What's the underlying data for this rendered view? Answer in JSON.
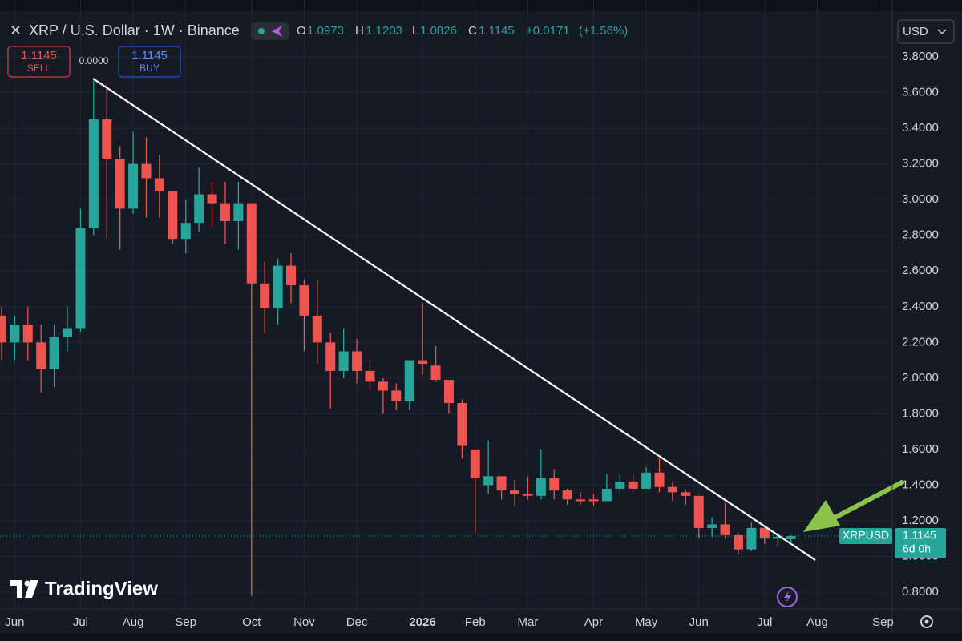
{
  "chart_data": {
    "type": "candlestick",
    "title": "XRP / U.S. Dollar · 1W · Binance",
    "categories": [
      null,
      null,
      null,
      null,
      null,
      null,
      null,
      null,
      null,
      null,
      null,
      null,
      null,
      null,
      null,
      null,
      null,
      null,
      null,
      null,
      null,
      null,
      null,
      null,
      null,
      null,
      null,
      null,
      null,
      null,
      null,
      null,
      null,
      null,
      null,
      null,
      null,
      null,
      null,
      null,
      null,
      null,
      null,
      null,
      null,
      null,
      null,
      null,
      null,
      null,
      null,
      null,
      null,
      null,
      null,
      null,
      null,
      null,
      null,
      null,
      null
    ],
    "series": [
      {
        "name": "XRPUSD",
        "up_color": "#26a69a",
        "down_color": "#ef5350",
        "open": [
          2.35,
          2.2,
          2.3,
          2.2,
          2.05,
          2.23,
          2.28,
          2.84,
          3.45,
          3.23,
          2.95,
          3.2,
          3.12,
          3.05,
          2.78,
          2.87,
          3.03,
          2.98,
          2.88,
          2.98,
          2.53,
          2.39,
          2.63,
          2.52,
          2.35,
          2.2,
          2.04,
          2.15,
          2.04,
          1.98,
          1.93,
          1.87,
          2.1,
          2.07,
          1.99,
          1.86,
          1.6,
          1.4,
          1.45,
          1.37,
          1.35,
          1.34,
          1.44,
          1.37,
          1.32,
          1.32,
          1.31,
          1.38,
          1.42,
          1.38,
          1.47,
          1.39,
          1.36,
          1.34,
          1.16,
          1.18,
          1.12,
          1.04,
          1.16,
          1.1,
          1.0973
        ],
        "high": [
          2.4,
          2.35,
          2.4,
          2.3,
          2.3,
          2.4,
          2.95,
          3.67,
          3.65,
          3.3,
          3.38,
          3.35,
          3.25,
          3.05,
          3.0,
          3.18,
          3.1,
          3.1,
          3.1,
          2.98,
          2.65,
          2.67,
          2.7,
          2.55,
          2.55,
          2.25,
          2.28,
          2.22,
          2.1,
          2.0,
          1.97,
          2.1,
          2.42,
          2.18,
          1.99,
          1.88,
          1.6,
          1.65,
          1.45,
          1.43,
          1.45,
          1.6,
          1.49,
          1.38,
          1.36,
          1.35,
          1.46,
          1.46,
          1.46,
          1.5,
          1.55,
          1.42,
          1.37,
          1.34,
          1.22,
          1.3,
          1.13,
          1.19,
          1.17,
          1.13,
          1.1203
        ],
        "low": [
          2.1,
          2.1,
          2.1,
          1.92,
          1.95,
          2.15,
          2.26,
          2.8,
          2.78,
          2.72,
          2.92,
          2.9,
          2.9,
          2.75,
          2.7,
          2.82,
          2.85,
          2.75,
          2.72,
          0.78,
          2.25,
          2.3,
          2.42,
          2.15,
          2.08,
          1.83,
          2.0,
          1.97,
          1.93,
          1.8,
          1.82,
          1.82,
          2.02,
          1.98,
          1.8,
          1.55,
          1.13,
          1.35,
          1.32,
          1.28,
          1.32,
          1.32,
          1.32,
          1.29,
          1.29,
          1.28,
          1.31,
          1.36,
          1.36,
          1.38,
          1.36,
          1.31,
          1.29,
          1.1,
          1.11,
          1.1,
          1.01,
          1.03,
          1.07,
          1.05,
          1.0826
        ],
        "close": [
          2.2,
          2.3,
          2.2,
          2.05,
          2.23,
          2.28,
          2.84,
          3.45,
          3.23,
          2.95,
          3.2,
          3.12,
          3.05,
          2.78,
          2.87,
          3.03,
          2.98,
          2.88,
          2.98,
          2.53,
          2.39,
          2.63,
          2.52,
          2.35,
          2.2,
          2.04,
          2.15,
          2.04,
          1.98,
          1.93,
          1.87,
          2.1,
          2.08,
          1.99,
          1.86,
          1.62,
          1.44,
          1.45,
          1.37,
          1.35,
          1.34,
          1.44,
          1.37,
          1.32,
          1.31,
          1.31,
          1.38,
          1.42,
          1.38,
          1.47,
          1.39,
          1.36,
          1.34,
          1.16,
          1.18,
          1.12,
          1.04,
          1.16,
          1.1,
          1.11,
          1.1145
        ]
      }
    ],
    "xlim": [
      -0.12,
      67.7
    ],
    "xticks": [
      {
        "value": 1,
        "label": "Jun"
      },
      {
        "value": 6,
        "label": "Jul"
      },
      {
        "value": 10,
        "label": "Aug"
      },
      {
        "value": 14,
        "label": "Sep"
      },
      {
        "value": 19,
        "label": "Oct"
      },
      {
        "value": 23,
        "label": "Nov"
      },
      {
        "value": 27,
        "label": "Dec"
      },
      {
        "value": 32,
        "label": "2026"
      },
      {
        "value": 36,
        "label": "Feb"
      },
      {
        "value": 40,
        "label": "Mar"
      },
      {
        "value": 45,
        "label": "Apr"
      },
      {
        "value": 49,
        "label": "May"
      },
      {
        "value": 53,
        "label": "Jun"
      },
      {
        "value": 58,
        "label": "Jul"
      },
      {
        "value": 62,
        "label": "Aug"
      },
      {
        "value": 67,
        "label": "Sep"
      }
    ],
    "ylim": [
      0.706,
      4.119
    ],
    "yticks": [
      {
        "value": 0.8,
        "label": "0.8000"
      },
      {
        "value": 1.0,
        "label": "1.0000"
      },
      {
        "value": 1.2,
        "label": "1.2000"
      },
      {
        "value": 1.4,
        "label": "1.4000"
      },
      {
        "value": 1.6,
        "label": "1.6000"
      },
      {
        "value": 1.8,
        "label": "1.8000"
      },
      {
        "value": 2.0,
        "label": "2.0000"
      },
      {
        "value": 2.2,
        "label": "2.2000"
      },
      {
        "value": 2.4,
        "label": "2.4000"
      },
      {
        "value": 2.6,
        "label": "2.6000"
      },
      {
        "value": 2.8,
        "label": "2.8000"
      },
      {
        "value": 3.0,
        "label": "3.0000"
      },
      {
        "value": 3.2,
        "label": "3.2000"
      },
      {
        "value": 3.4,
        "label": "3.4000"
      },
      {
        "value": 3.6,
        "label": "3.6000"
      },
      {
        "value": 3.8,
        "label": "3.8000"
      }
    ],
    "grid": true,
    "ohlc_labels": [
      "O",
      "H",
      "L",
      "C"
    ],
    "change": "+0.0171",
    "change_pct": "(+1.56%)",
    "countdown": "6d 0h"
  },
  "ui": {
    "sell": "SELL",
    "buy": "BUY",
    "spread": "0.0000",
    "currency": "USD",
    "brand": "TradingView"
  }
}
